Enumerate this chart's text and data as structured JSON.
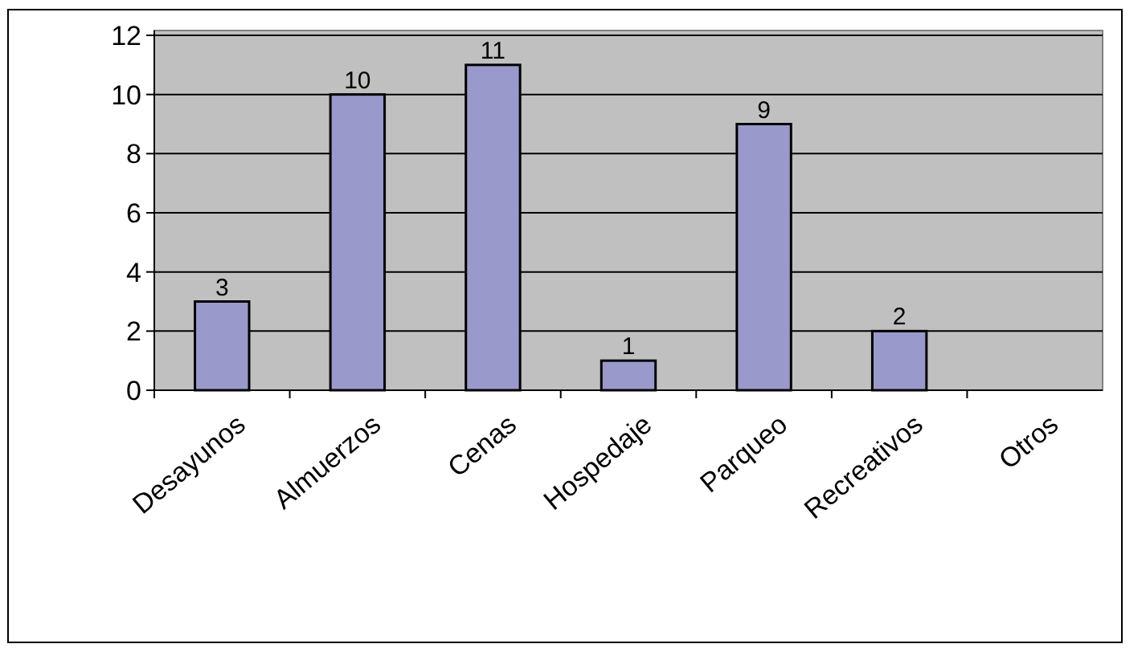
{
  "chart_data": {
    "type": "bar",
    "categories": [
      "Desayunos",
      "Almuerzos",
      "Cenas",
      "Hospedaje",
      "Parqueo",
      "Recreativos",
      "Otros"
    ],
    "values": [
      3,
      10,
      11,
      1,
      9,
      2,
      0
    ],
    "value_labels": [
      "3",
      "10",
      "11",
      "1",
      "9",
      "2",
      null
    ],
    "color": "#9999cc",
    "ylim": [
      0,
      12
    ],
    "yticks": [
      0,
      2,
      4,
      6,
      8,
      10,
      12
    ],
    "grid": "y"
  }
}
